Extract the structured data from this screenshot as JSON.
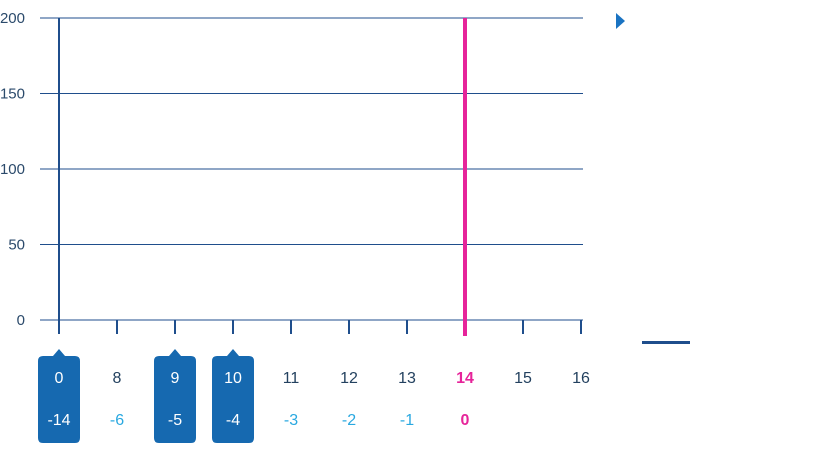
{
  "colors": {
    "axis": "#1f4e8c",
    "grid": "#1f4e8c",
    "highlight": "#e6249a",
    "selected_bg": "#1669b0",
    "selected_text": "#ffffff",
    "tick_text": "#23415f",
    "offset_text": "#29a8e0",
    "legend_marker": "#1a73c2"
  },
  "legend": {
    "marker_icon": "triangle-right-icon",
    "line_icon": "horizontal-line-icon"
  },
  "chart_data": {
    "type": "line",
    "title": "",
    "xlabel": "",
    "ylabel": "",
    "ylim": [
      0,
      200
    ],
    "yticks": [
      "0",
      "50",
      "100",
      "150",
      "200"
    ],
    "grid": true,
    "highlight_x_index": 7,
    "x_labels": [
      "0",
      "8",
      "9",
      "10",
      "11",
      "12",
      "13",
      "14",
      "15",
      "16"
    ],
    "offsets": [
      "-14",
      "-6",
      "-5",
      "-4",
      "-3",
      "-2",
      "-1",
      "0"
    ],
    "selected_indices": [
      0,
      2,
      3
    ],
    "series": []
  }
}
